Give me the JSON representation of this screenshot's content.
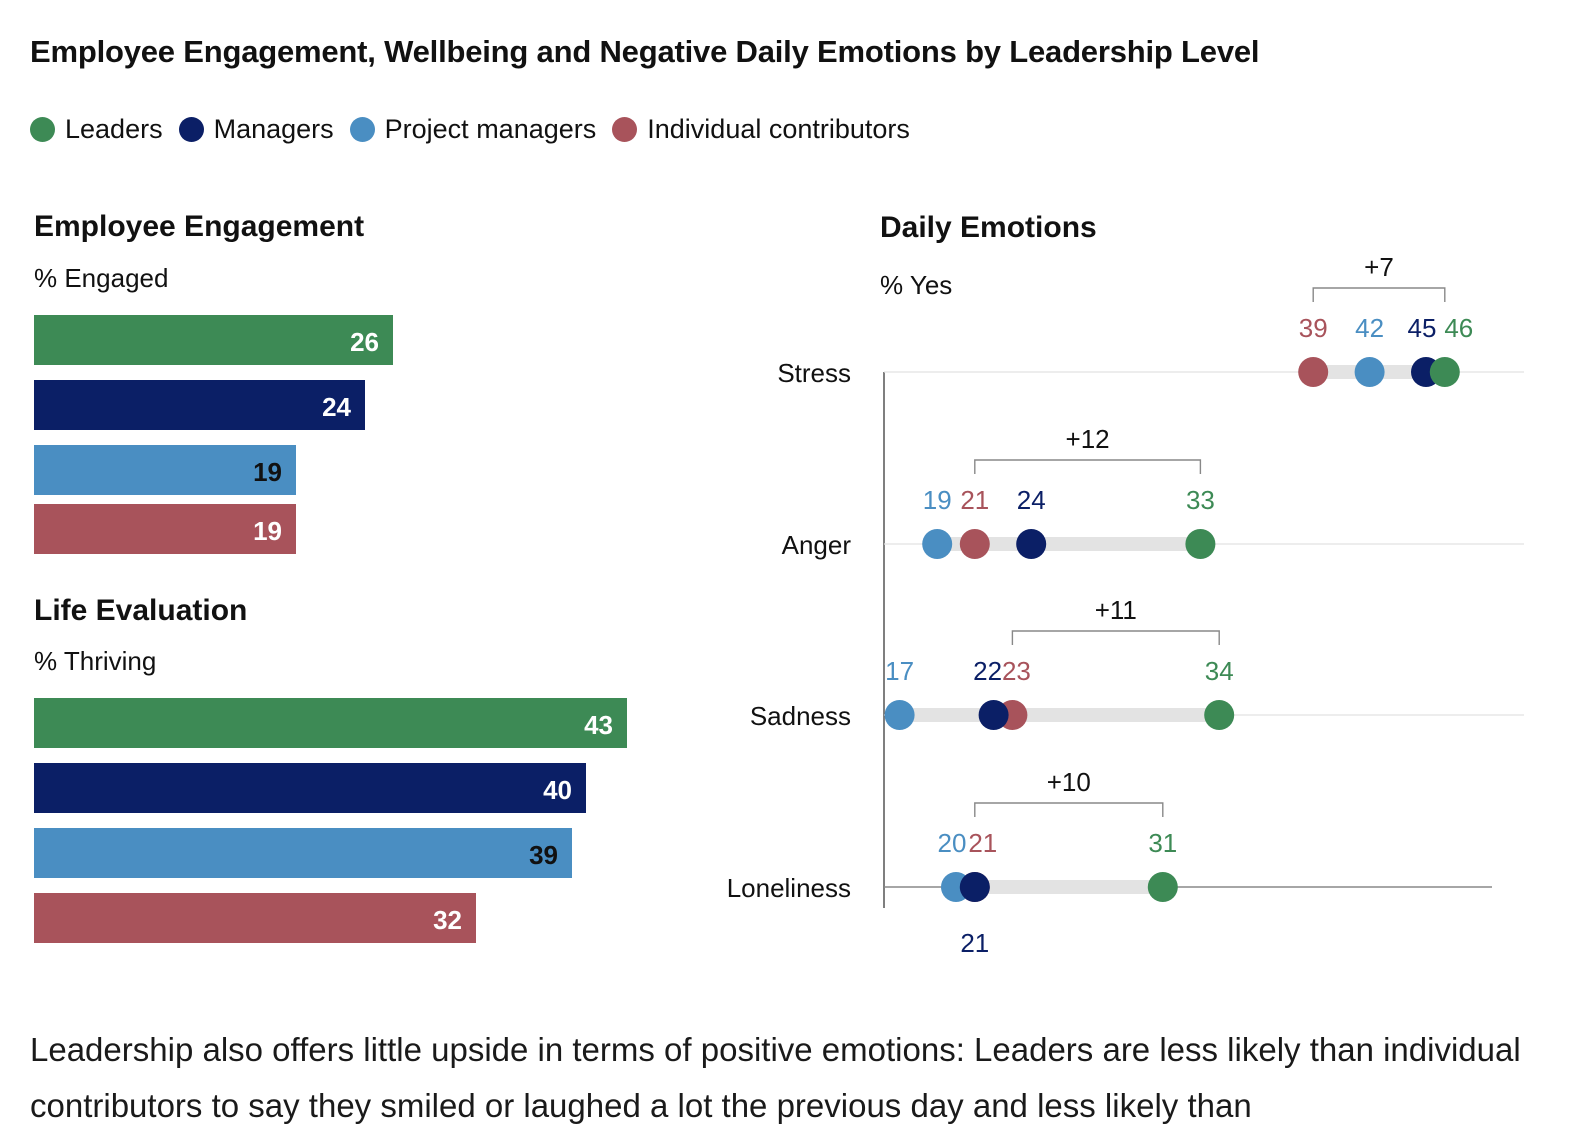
{
  "title": "Employee Engagement, Wellbeing and Negative Daily Emotions by Leadership Level",
  "legend": [
    {
      "label": "Leaders",
      "color": "#3d8a55"
    },
    {
      "label": "Managers",
      "color": "#0b1f66"
    },
    {
      "label": "Project managers",
      "color": "#4a8ec2"
    },
    {
      "label": "Individual contributors",
      "color": "#a8535b"
    }
  ],
  "sections": {
    "engagement": {
      "title": "Employee Engagement",
      "subtitle": "% Engaged"
    },
    "life": {
      "title": "Life Evaluation",
      "subtitle": "% Thriving"
    },
    "emotions": {
      "title": "Daily Emotions",
      "subtitle": "% Yes"
    }
  },
  "chart_data": [
    {
      "type": "bar",
      "title": "Employee Engagement",
      "ylabel": "% Engaged",
      "categories": [
        "Leaders",
        "Managers",
        "Project managers",
        "Individual contributors"
      ],
      "values": [
        26,
        24,
        19,
        19
      ],
      "label_colors": [
        "#ffffff",
        "#ffffff",
        "#111111",
        "#ffffff"
      ]
    },
    {
      "type": "bar",
      "title": "Life Evaluation",
      "ylabel": "% Thriving",
      "categories": [
        "Leaders",
        "Managers",
        "Project managers",
        "Individual contributors"
      ],
      "values": [
        43,
        40,
        39,
        32
      ],
      "label_colors": [
        "#ffffff",
        "#ffffff",
        "#111111",
        "#ffffff"
      ]
    },
    {
      "type": "scatter",
      "title": "Daily Emotions",
      "ylabel": "% Yes",
      "categories": [
        "Stress",
        "Anger",
        "Sadness",
        "Loneliness"
      ],
      "series": [
        {
          "name": "Leaders",
          "values": [
            46,
            33,
            34,
            31
          ]
        },
        {
          "name": "Managers",
          "values": [
            45,
            24,
            22,
            21
          ]
        },
        {
          "name": "Project managers",
          "values": [
            42,
            19,
            17,
            20
          ]
        },
        {
          "name": "Individual contributors",
          "values": [
            39,
            21,
            23,
            21
          ]
        }
      ],
      "gap_annotations": [
        "+7",
        "+12",
        "+11",
        "+10"
      ]
    }
  ],
  "paragraph": "Leadership also offers little upside in terms of positive emotions: Leaders are less likely than individual contributors to say they smiled or laughed a lot the previous day and less likely than"
}
